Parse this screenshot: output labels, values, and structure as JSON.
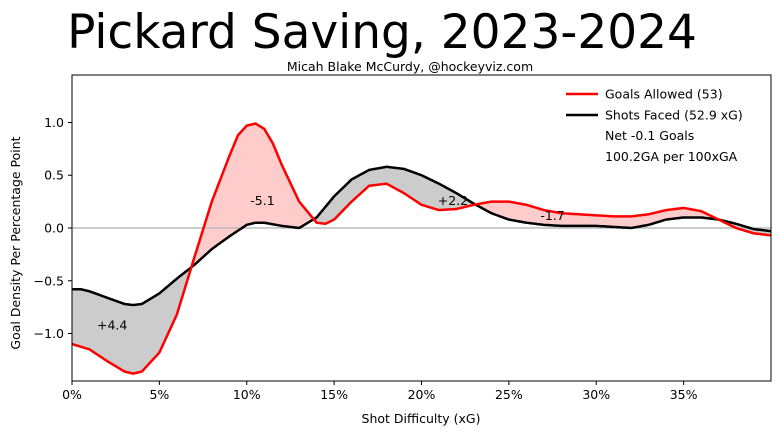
{
  "chart_data": {
    "type": "line",
    "title": "Pickard Saving, 2023-2024",
    "subtitle": "Micah Blake McCurdy, @hockeyviz.com",
    "xlabel": "Shot Difficulty (xG)",
    "ylabel": "Goal Density Per Percentage Point",
    "xlim": [
      0,
      40
    ],
    "ylim": [
      -1.45,
      1.45
    ],
    "x_ticks": [
      0,
      5,
      10,
      15,
      20,
      25,
      30,
      35
    ],
    "x_tick_labels": [
      "0%",
      "5%",
      "10%",
      "15%",
      "20%",
      "25%",
      "30%",
      "35%"
    ],
    "y_ticks": [
      -1.0,
      -0.5,
      0.0,
      0.5,
      1.0
    ],
    "y_tick_labels": [
      "−1.0",
      "−0.5",
      "0.0",
      "0.5",
      "1.0"
    ],
    "colors": {
      "goals": "#ff0000",
      "shots": "#000000",
      "fill_above": "#ffcccc",
      "fill_below": "#cccccc",
      "zero_line": "#bbbbbb"
    },
    "series": [
      {
        "name": "Goals Allowed (53)",
        "key": "goals",
        "x": [
          0,
          1,
          2,
          3,
          3.5,
          4,
          5,
          6,
          7,
          8,
          9,
          9.5,
          10,
          10.5,
          11,
          11.5,
          12,
          13,
          14,
          14.5,
          15,
          16,
          17,
          18,
          19,
          20,
          21,
          22,
          23,
          24,
          25,
          26,
          27,
          28,
          29,
          30,
          31,
          32,
          33,
          34,
          35,
          36,
          37,
          38,
          39,
          40
        ],
        "values": [
          -1.1,
          -1.15,
          -1.26,
          -1.36,
          -1.38,
          -1.36,
          -1.18,
          -0.82,
          -0.28,
          0.25,
          0.68,
          0.88,
          0.97,
          0.99,
          0.94,
          0.8,
          0.6,
          0.25,
          0.05,
          0.04,
          0.08,
          0.25,
          0.4,
          0.42,
          0.33,
          0.22,
          0.17,
          0.18,
          0.22,
          0.25,
          0.25,
          0.22,
          0.17,
          0.14,
          0.13,
          0.12,
          0.11,
          0.11,
          0.13,
          0.17,
          0.19,
          0.16,
          0.08,
          0.0,
          -0.05,
          -0.07
        ]
      },
      {
        "name": "Shots Faced (52.9 xG)",
        "key": "shots",
        "x": [
          0,
          0.5,
          1,
          2,
          3,
          3.5,
          4,
          5,
          6,
          7,
          8,
          9,
          10,
          10.5,
          11,
          12,
          13,
          14,
          15,
          16,
          17,
          18,
          19,
          20,
          21,
          22,
          23,
          24,
          25,
          26,
          27,
          28,
          29,
          30,
          31,
          32,
          33,
          34,
          35,
          36,
          37,
          38,
          39,
          40
        ],
        "values": [
          -0.58,
          -0.58,
          -0.6,
          -0.66,
          -0.72,
          -0.73,
          -0.72,
          -0.62,
          -0.48,
          -0.35,
          -0.2,
          -0.08,
          0.03,
          0.05,
          0.05,
          0.02,
          0.0,
          0.1,
          0.3,
          0.46,
          0.55,
          0.58,
          0.56,
          0.5,
          0.42,
          0.33,
          0.23,
          0.14,
          0.08,
          0.05,
          0.03,
          0.02,
          0.02,
          0.02,
          0.01,
          0.0,
          0.03,
          0.08,
          0.1,
          0.1,
          0.08,
          0.04,
          -0.01,
          -0.03
        ]
      }
    ],
    "annotations": [
      {
        "text": "+4.4",
        "x": 2.3,
        "y": -0.92
      },
      {
        "text": "-5.1",
        "x": 10.9,
        "y": 0.26
      },
      {
        "text": "+2.2",
        "x": 21.8,
        "y": 0.26
      },
      {
        "text": "-1.7",
        "x": 27.5,
        "y": 0.12
      }
    ],
    "legend": {
      "position": "top-right",
      "entries": [
        "Goals Allowed (53)",
        "Shots Faced (52.9 xG)"
      ],
      "extra": [
        "Net -0.1 Goals",
        "100.2GA per 100xGA"
      ]
    }
  }
}
